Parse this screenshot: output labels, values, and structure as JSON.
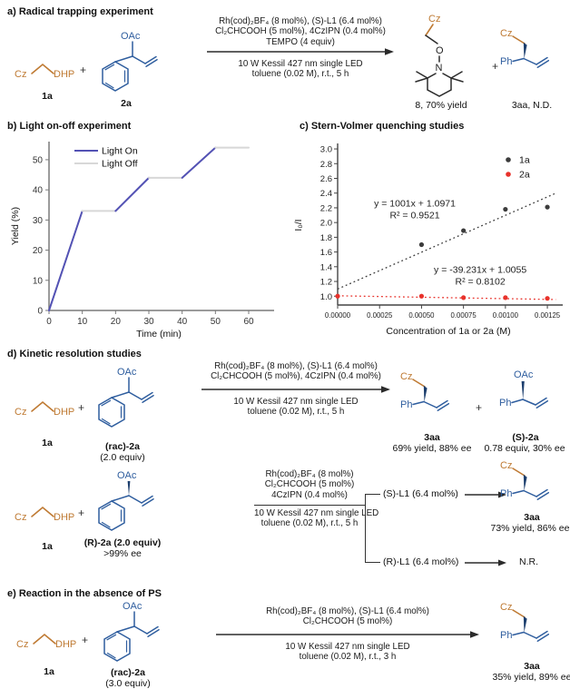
{
  "labels": {
    "cz": "Cz",
    "dhp": "DHP",
    "oac": "OAc",
    "ph": "Ph",
    "o": "O",
    "n": "N",
    "plus": "+"
  },
  "section_a": {
    "title": "a) Radical trapping experiment",
    "r1_label": "1a",
    "r2_label": "2a",
    "cond_above": [
      "Rh(cod)₂BF₄ (8 mol%), (S)-L1 (6.4 mol%)",
      "Cl₂CHCOOH (5 mol%), 4CzIPN (0.4 mol%)",
      "TEMPO (4 equiv)"
    ],
    "cond_below": [
      "10 W Kessil 427 nm single LED",
      "toluene (0.02 M), r.t., 5 h"
    ],
    "p1_label": "8, 70% yield",
    "p2_label": "3aa, N.D."
  },
  "chart_data": [
    {
      "type": "line",
      "title": "b) Light on-off experiment",
      "xlabel": "Time (min)",
      "ylabel": "Yield (%)",
      "xlim": [
        0,
        66
      ],
      "ylim": [
        0,
        56
      ],
      "xticks": [
        0,
        10,
        20,
        30,
        40,
        50,
        60
      ],
      "yticks": [
        0,
        10,
        20,
        30,
        40,
        50
      ],
      "x": [
        0,
        10,
        20,
        30,
        40,
        50,
        60
      ],
      "y": [
        0,
        33,
        33,
        44,
        44,
        54,
        54
      ],
      "segment_states": [
        "on",
        "off",
        "on",
        "off",
        "on",
        "off"
      ],
      "legend": [
        {
          "label": "Light On",
          "state": "on",
          "color": "#5352b4"
        },
        {
          "label": "Light Off",
          "state": "off",
          "color": "#d8d8d8"
        }
      ],
      "legend_position": "upper left",
      "grid": false
    },
    {
      "type": "scatter",
      "title": "c) Stern-Volmer quenching studies",
      "xlabel": "Concentration of 1a or 2a (M)",
      "ylabel": "I₀/I",
      "xlim": [
        0,
        0.00132
      ],
      "ylim": [
        0.88,
        3.05
      ],
      "xticks": [
        0,
        0.00025,
        0.0005,
        0.00075,
        0.001,
        0.00125
      ],
      "xtick_labels": [
        "0.00000",
        "0.00025",
        "0.00050",
        "0.00075",
        "0.00100",
        "0.00125"
      ],
      "yticks": [
        1.0,
        1.2,
        1.4,
        1.6,
        1.8,
        2.0,
        2.2,
        2.4,
        2.6,
        2.8,
        3.0
      ],
      "ytick_labels": [
        "1.0",
        "1.2",
        "1.4",
        "1.6",
        "1.8",
        "2.0",
        "2.2",
        "2.4",
        "2.6",
        "2.8",
        "3.0"
      ],
      "series": [
        {
          "name": "1a",
          "color": "#3c3c3c",
          "points": [
            [
              0.0005,
              1.7
            ],
            [
              0.00075,
              1.89
            ],
            [
              0.001,
              2.18
            ],
            [
              0.00125,
              2.21
            ]
          ],
          "fit": {
            "slope": 1001,
            "intercept": 1.0971,
            "equation": "y = 1001x + 1.0971",
            "r2": "R² = 0.9521",
            "line_style": "dotted"
          }
        },
        {
          "name": "2a",
          "color": "#e8322b",
          "points": [
            [
              0,
              1.0
            ],
            [
              0.0005,
              1.0
            ],
            [
              0.00075,
              0.98
            ],
            [
              0.001,
              0.98
            ],
            [
              0.00125,
              0.97
            ]
          ],
          "fit": {
            "slope": -39.231,
            "intercept": 1.0055,
            "equation": "y = -39.231x + 1.0055",
            "r2": "R² = 0.8102",
            "line_style": "dotted"
          }
        }
      ],
      "annotations": [
        {
          "x": 0.00046,
          "y": 2.22,
          "lines": [
            "y = 1001x + 1.0971",
            "R² = 0.9521"
          ],
          "color": "#222222"
        },
        {
          "x": 0.00085,
          "y": 1.32,
          "lines": [
            "y = -39.231x + 1.0055",
            "R² = 0.8102"
          ],
          "color": "#222222"
        }
      ],
      "legend": [
        {
          "label": "1a",
          "color": "#3c3c3c"
        },
        {
          "label": "2a",
          "color": "#e8322b"
        }
      ],
      "legend_position": "upper right",
      "grid": false
    }
  ],
  "section_d": {
    "title": "d) Kinetic resolution studies",
    "s1": {
      "r1_label": "1a",
      "r2_label": "(rac)-2a",
      "r2_equiv": "(2.0 equiv)",
      "cond_above": [
        "Rh(cod)₂BF₄ (8 mol%), (S)-L1 (6.4 mol%)",
        "Cl₂CHCOOH (5 mol%), 4CzIPN (0.4 mol%)"
      ],
      "cond_below": [
        "10 W Kessil 427 nm single LED",
        "toluene (0.02 M), r.t., 5 h"
      ],
      "p1_label": "3aa",
      "p1_yield": "69% yield, 88% ee",
      "p2_label": "(S)-2a",
      "p2_yield": "0.78 equiv, 30% ee"
    },
    "s2": {
      "r1_label": "1a",
      "r2_label": "(R)-2a (2.0 equiv)",
      "r2_ee": ">99% ee",
      "cond_above": [
        "Rh(cod)₂BF₄ (8 mol%)",
        "Cl₂CHCOOH (5 mol%)",
        "4CzIPN (0.4 mol%)"
      ],
      "cond_below": [
        "10 W Kessil 427 nm single LED",
        "toluene (0.02 M), r.t., 5 h"
      ],
      "branch_top": "(S)-L1 (6.4 mol%)",
      "branch_top_product": "3aa",
      "branch_top_yield": "73% yield, 86% ee",
      "branch_bottom": "(R)-L1 (6.4 mol%)",
      "branch_bottom_result": "N.R."
    }
  },
  "section_e": {
    "title": "e) Reaction in the absence of PS",
    "r1_label": "1a",
    "r2_label": "(rac)-2a",
    "r2_equiv": "(3.0 equiv)",
    "cond_above": [
      "Rh(cod)₂BF₄ (8 mol%), (S)-L1 (6.4 mol%)",
      "Cl₂CHCOOH (5 mol%)"
    ],
    "cond_below": [
      "10 W Kessil 427 nm single LED",
      "toluene (0.02 M), r.t., 3 h"
    ],
    "p1_label": "3aa",
    "p1_yield": "35% yield, 89% ee"
  },
  "colors": {
    "orange_structure": "#bf7a33",
    "blue_structure": "#2e5d9e",
    "wedge_navy": "#1c3e6d",
    "black_structure": "#2b2b2b",
    "light_on": "#5352b4",
    "light_off": "#d8d8d8",
    "series_1a": "#3c3c3c",
    "series_2a": "#e8322b"
  }
}
